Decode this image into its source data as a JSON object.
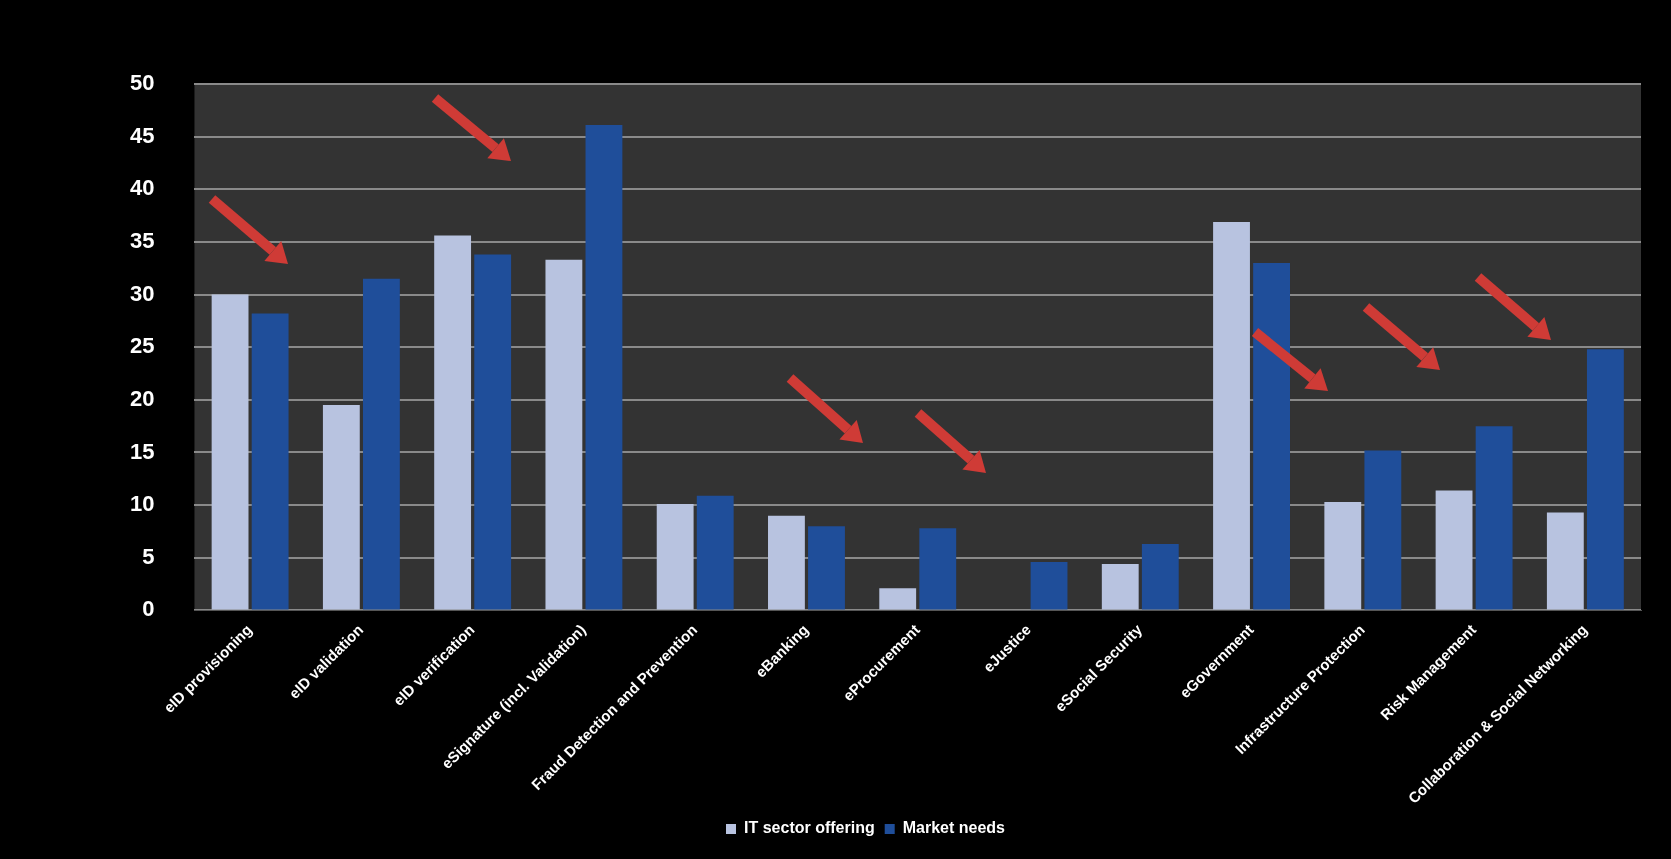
{
  "chart_data": {
    "type": "bar",
    "categories": [
      "eID provisioning",
      "eID validation",
      "eID verification",
      "eSignature (incl. Validation)",
      "Fraud Detection and Prevention",
      "eBanking",
      "eProcurement",
      "eJustice",
      "eSocial Security",
      "eGovernment",
      "Infrastructure Protection",
      "Risk Management",
      "Collaboration & Social Networking"
    ],
    "series": [
      {
        "name": "IT sector offering",
        "color": "#b8c3e0",
        "values": [
          30,
          19.5,
          35.6,
          33.3,
          10.1,
          9,
          2.1,
          0,
          4.4,
          36.9,
          10.3,
          11.4,
          9.3
        ]
      },
      {
        "name": "Market needs",
        "color": "#1f4e9a",
        "values": [
          28.2,
          31.5,
          33.8,
          46.1,
          10.9,
          8,
          7.8,
          4.6,
          6.3,
          33,
          15.2,
          17.5,
          24.8
        ]
      }
    ],
    "ylim": [
      0,
      50
    ],
    "yticks": [
      0,
      5,
      10,
      15,
      20,
      25,
      30,
      35,
      40,
      45,
      50
    ],
    "grid": "y",
    "legend": "bottom"
  }
}
